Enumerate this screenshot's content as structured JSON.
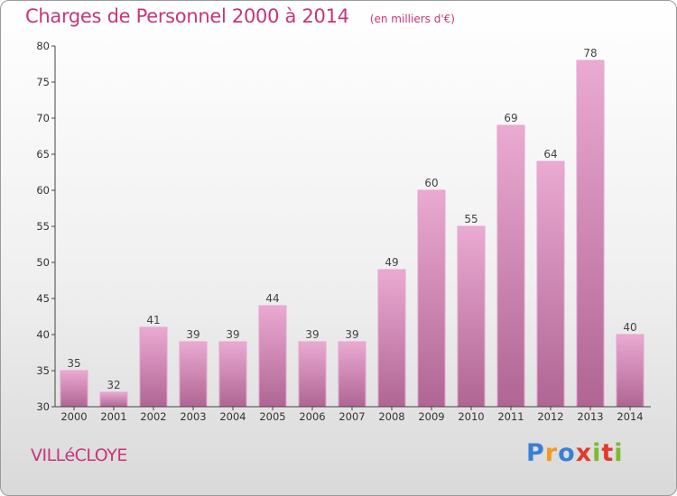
{
  "title": "Charges de Personnel 2000 à 2014",
  "subtitle": "(en milliers d'€)",
  "commune": "VILLéCLOYE",
  "logo": {
    "letters": [
      "P",
      "r",
      "o",
      "x",
      "i",
      "t",
      "i"
    ],
    "colors": [
      "#3a7fd5",
      "#f39a1e",
      "#3a7fd5",
      "#e23a2e",
      "#7cbb2a",
      "#e23a2e",
      "#7cbb2a"
    ]
  },
  "colors": {
    "accent": "#c8357a",
    "bar_top": "#eaaad2",
    "bar_bottom": "#b06593",
    "bar_edge": "#e6a3cc"
  },
  "chart_data": {
    "type": "bar",
    "categories": [
      "2000",
      "2001",
      "2002",
      "2003",
      "2004",
      "2005",
      "2006",
      "2007",
      "2008",
      "2009",
      "2010",
      "2011",
      "2012",
      "2013",
      "2014"
    ],
    "values": [
      35,
      32,
      41,
      39,
      39,
      44,
      39,
      39,
      49,
      60,
      55,
      69,
      64,
      78,
      40
    ],
    "ylim": [
      30,
      80
    ],
    "yticks": [
      30,
      35,
      40,
      45,
      50,
      55,
      60,
      65,
      70,
      75,
      80
    ],
    "grid": false,
    "xlabel": "",
    "ylabel": ""
  }
}
